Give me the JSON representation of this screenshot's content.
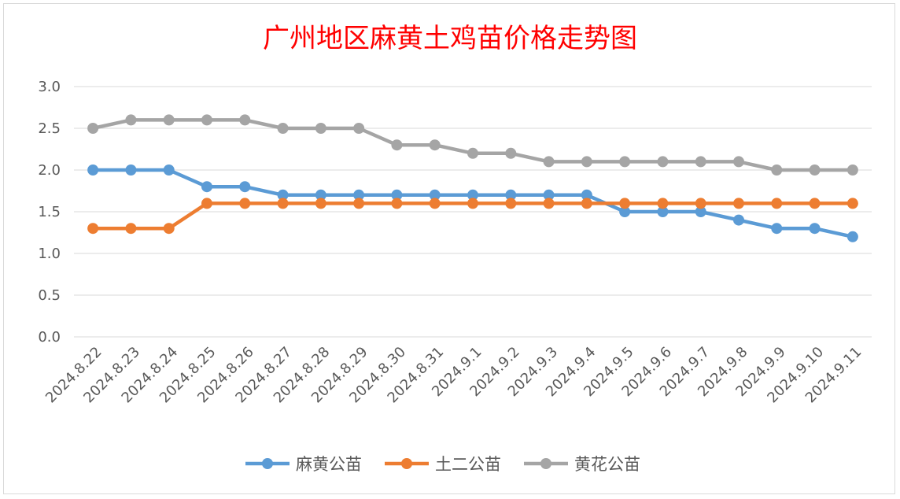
{
  "chart_data": {
    "type": "line",
    "title": "广州地区麻黄土鸡苗价格走势图",
    "xlabel": "",
    "ylabel": "",
    "categories": [
      "2024.8.22",
      "2024.8.23",
      "2024.8.24",
      "2024.8.25",
      "2024.8.26",
      "2024.8.27",
      "2024.8.28",
      "2024.8.29",
      "2024.8.30",
      "2024.8.31",
      "2024.9.1",
      "2024.9.2",
      "2024.9.3",
      "2024.9.4",
      "2024.9.5",
      "2024.9.6",
      "2024.9.7",
      "2024.9.8",
      "2024.9.9",
      "2024.9.10",
      "2024.9.11"
    ],
    "ylim": [
      0,
      3
    ],
    "yticks": [
      "0.0",
      "0.5",
      "1.0",
      "1.5",
      "2.0",
      "2.5",
      "3.0"
    ],
    "grid": true,
    "legend_position": "bottom",
    "series": [
      {
        "name": "麻黄公苗",
        "color": "#5b9bd5",
        "values": [
          2.0,
          2.0,
          2.0,
          1.8,
          1.8,
          1.7,
          1.7,
          1.7,
          1.7,
          1.7,
          1.7,
          1.7,
          1.7,
          1.7,
          1.5,
          1.5,
          1.5,
          1.4,
          1.3,
          1.3,
          1.2
        ]
      },
      {
        "name": "土二公苗",
        "color": "#ed7d31",
        "values": [
          1.3,
          1.3,
          1.3,
          1.6,
          1.6,
          1.6,
          1.6,
          1.6,
          1.6,
          1.6,
          1.6,
          1.6,
          1.6,
          1.6,
          1.6,
          1.6,
          1.6,
          1.6,
          1.6,
          1.6,
          1.6
        ]
      },
      {
        "name": "黄花公苗",
        "color": "#a5a5a5",
        "values": [
          2.5,
          2.6,
          2.6,
          2.6,
          2.6,
          2.5,
          2.5,
          2.5,
          2.3,
          2.3,
          2.2,
          2.2,
          2.1,
          2.1,
          2.1,
          2.1,
          2.1,
          2.1,
          2.0,
          2.0,
          2.0
        ]
      }
    ]
  }
}
